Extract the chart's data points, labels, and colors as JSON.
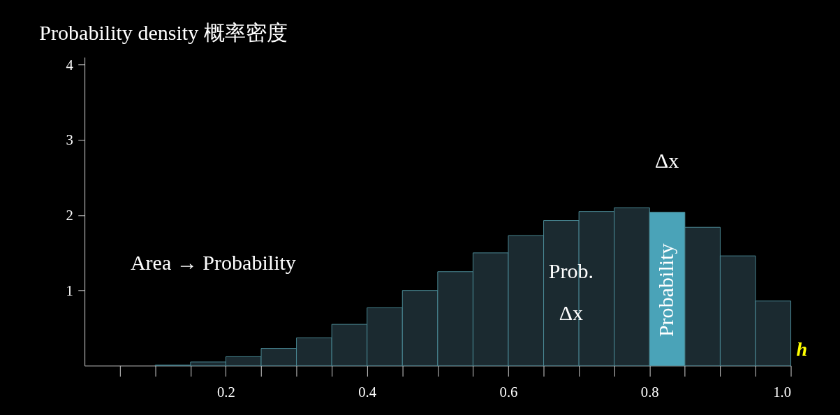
{
  "chart_data": {
    "type": "histogram",
    "title": "Probability density 概率密度",
    "xlabel": "h",
    "bins": [
      0,
      0.05,
      0.1,
      0.15,
      0.2,
      0.25,
      0.3,
      0.35,
      0.4,
      0.45,
      0.5,
      0.55,
      0.6,
      0.65,
      0.7,
      0.75,
      0.8,
      0.85,
      0.9,
      0.95,
      1.0
    ],
    "values": [
      0,
      0,
      0.01,
      0.05,
      0.12,
      0.23,
      0.37,
      0.55,
      0.77,
      1.0,
      1.25,
      1.5,
      1.73,
      1.93,
      2.05,
      2.1,
      2.04,
      1.84,
      1.46,
      0.86
    ],
    "colors": [
      "#1b2a30",
      "#1b2a30",
      "#1b2a30",
      "#1b2a30",
      "#1b2a30",
      "#1b2a30",
      "#1b2a30",
      "#1b2a30",
      "#1b2a30",
      "#1b2a30",
      "#1b2a30",
      "#1b2a30",
      "#1b2a30",
      "#1b2a30",
      "#1b2a30",
      "#1b2a30",
      "#4aa3b8",
      "#1b2a30",
      "#1b2a30",
      "#1b2a30"
    ],
    "xlim": [
      0,
      1.0
    ],
    "ylim": [
      0,
      4.1
    ],
    "xticks": [
      {
        "value": 0.05,
        "label": null
      },
      {
        "value": 0.1,
        "label": null
      },
      {
        "value": 0.15,
        "label": null
      },
      0.2,
      {
        "value": 0.25,
        "label": null
      },
      {
        "value": 0.3,
        "label": null
      },
      {
        "value": 0.35,
        "label": null
      },
      0.4,
      {
        "value": 0.45,
        "label": null
      },
      {
        "value": 0.5,
        "label": null
      },
      {
        "value": 0.55,
        "label": null
      },
      0.6,
      {
        "value": 0.65,
        "label": null
      },
      {
        "value": 0.7,
        "label": null
      },
      {
        "value": 0.75,
        "label": null
      },
      0.8,
      {
        "value": 0.85,
        "label": null
      },
      {
        "value": 0.9,
        "label": null
      },
      {
        "value": 0.95,
        "label": null
      },
      {
        "value": 1.0,
        "label": "1.0"
      }
    ],
    "yticks": [
      1,
      2,
      3,
      4
    ],
    "grid": false,
    "annotations": [
      "Area → Probability",
      "Probability",
      "Δx",
      "Prob.",
      "Δx"
    ]
  }
}
